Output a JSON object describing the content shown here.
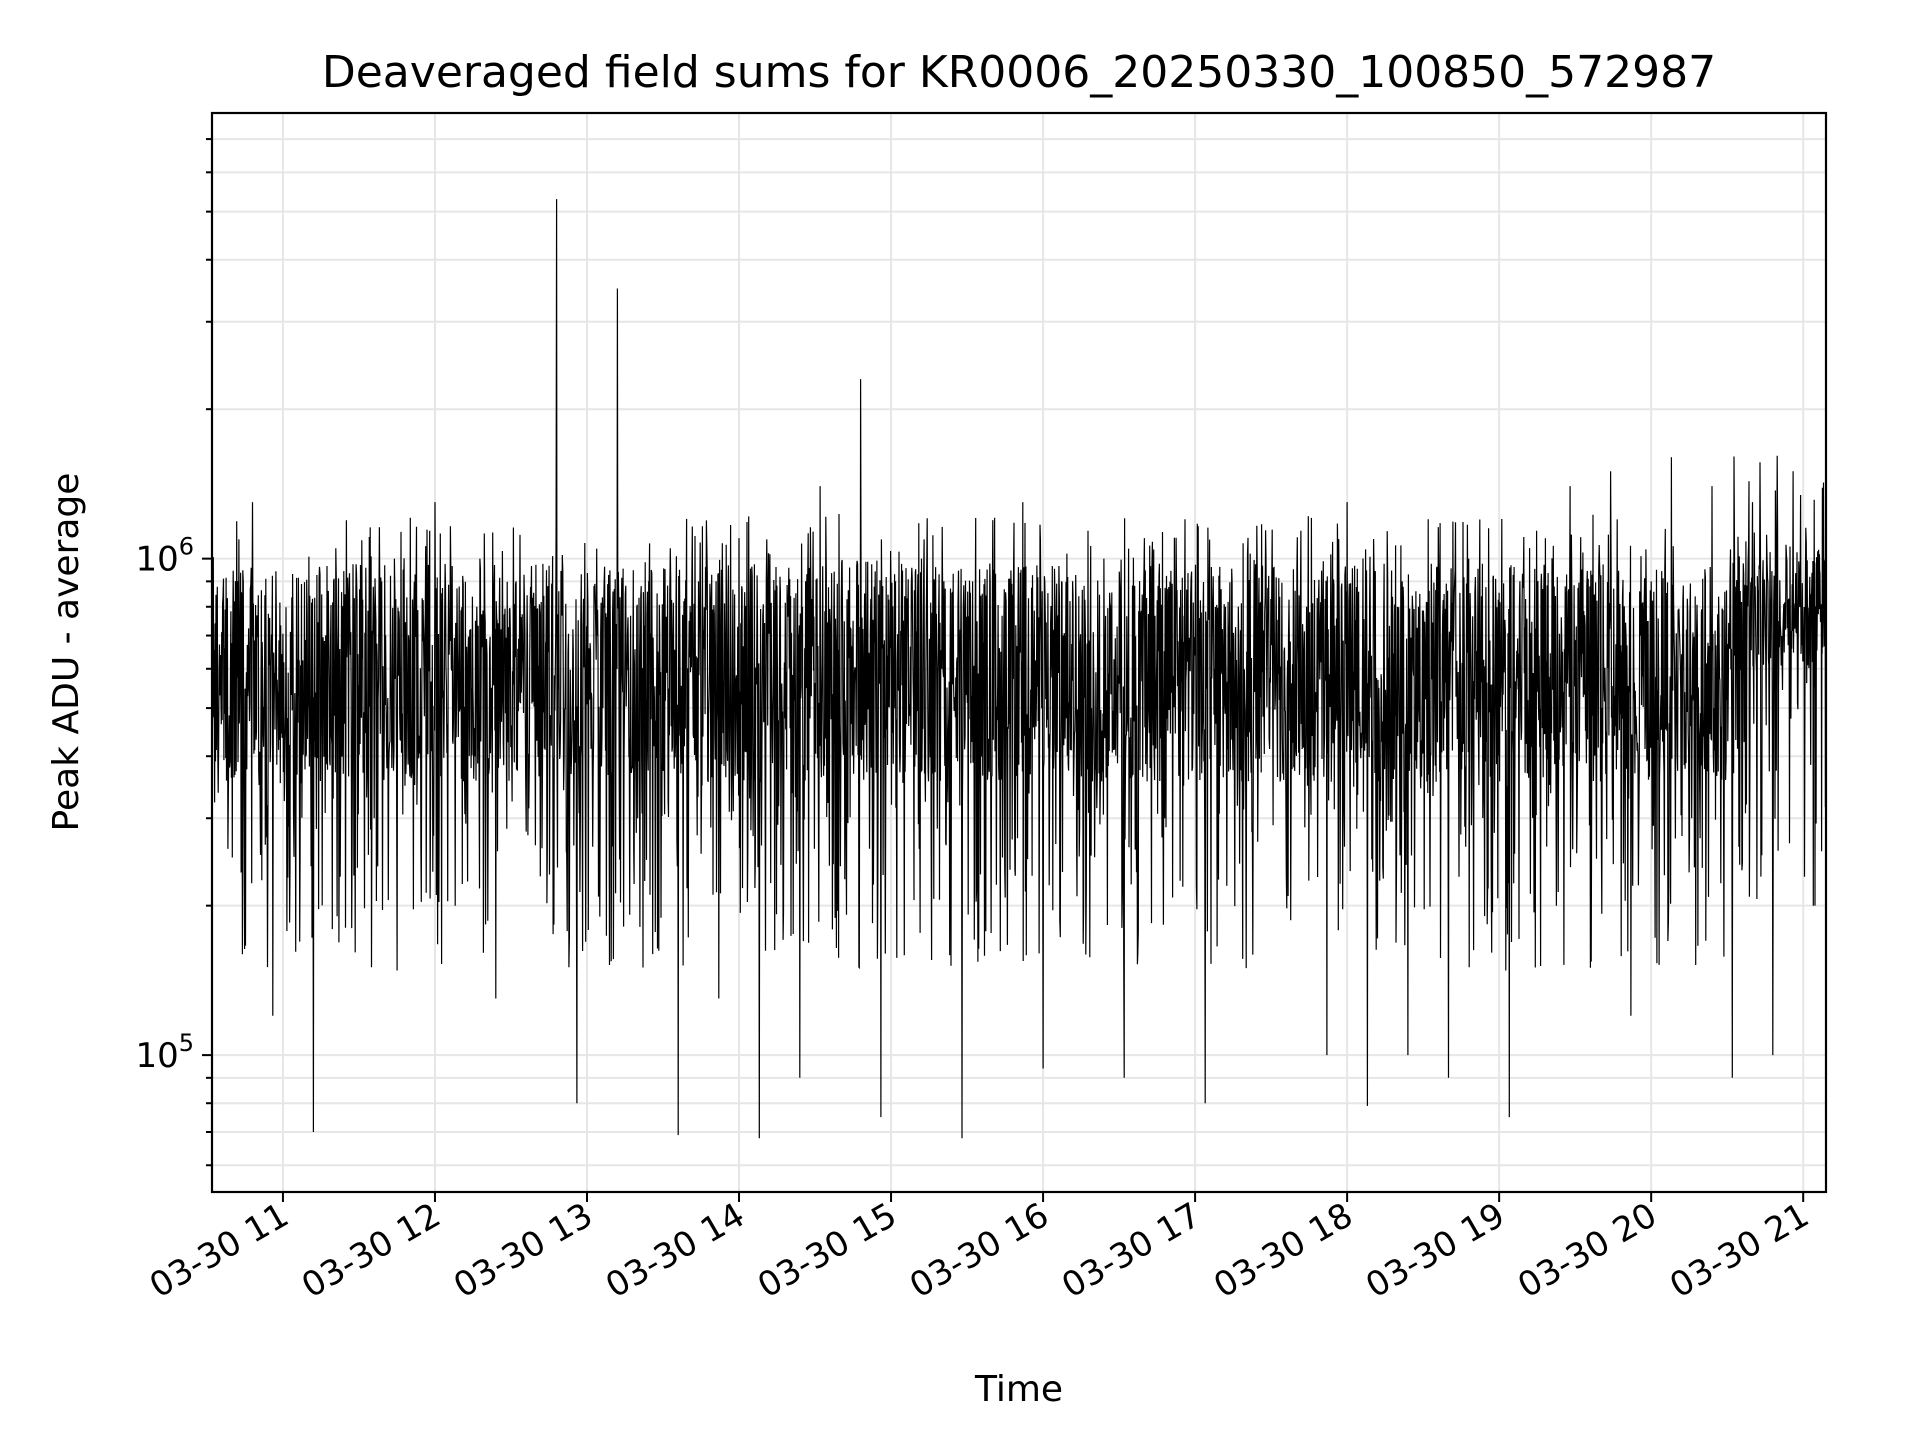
{
  "chart_data": {
    "type": "line",
    "title": "Deaveraged field sums for KR0006_20250330_100850_572987",
    "xlabel": "Time",
    "ylabel": "Peak ADU - average",
    "yscale": "log",
    "ylim": [
      53000,
      7900000
    ],
    "xlim": [
      "03-30 10:32",
      "03-30 21:09"
    ],
    "grid": true,
    "legend": "none",
    "line_color": "#000000",
    "x_ticks": [
      "03-30 11",
      "03-30 12",
      "03-30 13",
      "03-30 14",
      "03-30 15",
      "03-30 16",
      "03-30 17",
      "03-30 18",
      "03-30 19",
      "03-30 20",
      "03-30 21"
    ],
    "y_ticks": [
      {
        "value": 100000,
        "base": "10",
        "exp": "5"
      },
      {
        "value": 1000000,
        "base": "10",
        "exp": "6"
      }
    ],
    "series": [
      {
        "x": [
          "03-30 10:32",
          "03-30 10:40",
          "03-30 10:48",
          "03-30 10:56",
          "03-30 11:04",
          "03-30 11:12",
          "03-30 11:20",
          "03-30 11:28",
          "03-30 11:36",
          "03-30 11:44",
          "03-30 11:52",
          "03-30 12:00",
          "03-30 12:08",
          "03-30 12:16",
          "03-30 12:24",
          "03-30 12:32",
          "03-30 12:40",
          "03-30 12:48",
          "03-30 12:56",
          "03-30 13:04",
          "03-30 13:12",
          "03-30 13:20",
          "03-30 13:28",
          "03-30 13:36",
          "03-30 13:44",
          "03-30 13:52",
          "03-30 14:00",
          "03-30 14:08",
          "03-30 14:16",
          "03-30 14:24",
          "03-30 14:32",
          "03-30 14:40",
          "03-30 14:48",
          "03-30 14:56",
          "03-30 15:04",
          "03-30 15:12",
          "03-30 15:20",
          "03-30 15:28",
          "03-30 15:36",
          "03-30 15:44",
          "03-30 15:52",
          "03-30 16:00",
          "03-30 16:08",
          "03-30 16:16",
          "03-30 16:24",
          "03-30 16:32",
          "03-30 16:40",
          "03-30 16:48",
          "03-30 16:56",
          "03-30 17:04",
          "03-30 17:12",
          "03-30 17:20",
          "03-30 17:28",
          "03-30 17:36",
          "03-30 17:44",
          "03-30 17:52",
          "03-30 18:00",
          "03-30 18:08",
          "03-30 18:16",
          "03-30 18:24",
          "03-30 18:32",
          "03-30 18:40",
          "03-30 18:48",
          "03-30 18:56",
          "03-30 19:04",
          "03-30 19:12",
          "03-30 19:20",
          "03-30 19:28",
          "03-30 19:36",
          "03-30 19:44",
          "03-30 19:52",
          "03-30 20:00",
          "03-30 20:08",
          "03-30 20:16",
          "03-30 20:24",
          "03-30 20:32",
          "03-30 20:40",
          "03-30 20:48",
          "03-30 20:56",
          "03-30 21:04",
          "03-30 21:09"
        ],
        "y": [
          900000,
          250000,
          1300000,
          120000,
          650000,
          70000,
          900000,
          230000,
          300000,
          1000000,
          350000,
          1300000,
          200000,
          750000,
          130000,
          900000,
          600000,
          5300000,
          80000,
          700000,
          3500000,
          300000,
          650000,
          69000,
          900000,
          130000,
          1100000,
          68000,
          700000,
          90000,
          1400000,
          240000,
          2300000,
          75000,
          700000,
          1000000,
          600000,
          68000,
          850000,
          250000,
          1300000,
          94000,
          700000,
          200000,
          1000000,
          90000,
          1100000,
          300000,
          1200000,
          80000,
          800000,
          300000,
          1000000,
          230000,
          800000,
          100000,
          1300000,
          79000,
          900000,
          100000,
          1200000,
          90000,
          1000000,
          700000,
          75000,
          1050000,
          350000,
          1400000,
          150000,
          1500000,
          120000,
          900000,
          1600000,
          300000,
          1400000,
          90000,
          1300000,
          100000,
          1500000,
          200000,
          1000000
        ]
      }
    ]
  }
}
